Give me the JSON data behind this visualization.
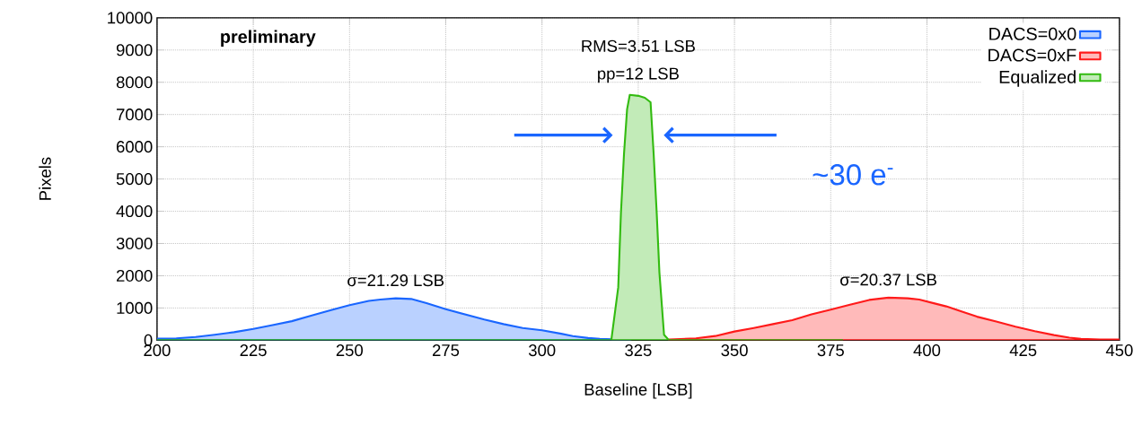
{
  "chart_data": {
    "type": "area",
    "xlabel": "Baseline [LSB]",
    "ylabel": "Pixels",
    "xlim": [
      200,
      450
    ],
    "ylim": [
      0,
      10000
    ],
    "xticks": [
      200,
      225,
      250,
      275,
      300,
      325,
      350,
      375,
      400,
      425,
      450
    ],
    "yticks": [
      0,
      1000,
      2000,
      3000,
      4000,
      5000,
      6000,
      7000,
      8000,
      9000,
      10000
    ],
    "grid": true,
    "legend": "top right",
    "series": [
      {
        "name": "DACS=0x0",
        "color": "#1a66ff",
        "x": [
          200,
          205,
          210,
          215,
          220,
          225,
          230,
          235,
          240,
          245,
          250,
          255,
          258,
          262,
          266,
          270,
          275,
          280,
          285,
          290,
          295,
          300,
          305,
          308,
          312,
          315,
          320,
          323
        ],
        "values": [
          50,
          60,
          100,
          170,
          250,
          350,
          470,
          590,
          760,
          930,
          1090,
          1220,
          1260,
          1300,
          1280,
          1150,
          960,
          800,
          640,
          500,
          380,
          310,
          200,
          130,
          70,
          40,
          20,
          10
        ]
      },
      {
        "name": "DACS=0xF",
        "color": "#ff1a1a",
        "x": [
          333,
          340,
          345,
          350,
          355,
          360,
          365,
          370,
          375,
          380,
          385,
          390,
          395,
          398,
          402,
          405,
          410,
          413,
          418,
          423,
          428,
          433,
          437,
          440,
          445,
          450
        ],
        "values": [
          20,
          60,
          130,
          270,
          380,
          500,
          620,
          800,
          950,
          1100,
          1250,
          1320,
          1300,
          1260,
          1140,
          1050,
          850,
          730,
          580,
          420,
          280,
          160,
          80,
          40,
          20,
          20
        ]
      },
      {
        "name": "Equalized",
        "color": "#33bb11",
        "x": [
          200,
          318,
          319.8,
          320.5,
          321.3,
          322.1,
          322.8,
          325,
          326.7,
          328.2,
          329,
          329.8,
          330.5,
          331.7,
          333,
          378
        ],
        "values": [
          0,
          0,
          1640,
          3940,
          5780,
          7160,
          7610,
          7580,
          7520,
          7380,
          5780,
          3940,
          2100,
          170,
          0,
          0
        ]
      }
    ],
    "annotations": [
      "preliminary",
      "~30 e$^{-}$",
      {
        "text": "RMS=3.51 LSB",
        "x": 325,
        "y": 7610
      },
      {
        "text": "pp=12 LSB",
        "x": 325,
        "y": 7610
      },
      {
        "text": "σ=21.29 LSB",
        "x": 262,
        "y": 1300
      },
      {
        "text": "σ=20.37 LSB",
        "x": 390,
        "y": 1320
      }
    ]
  }
}
